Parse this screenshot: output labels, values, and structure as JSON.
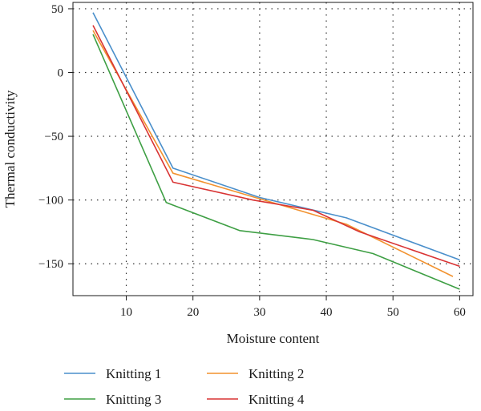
{
  "chart_data": {
    "type": "line",
    "xlabel": "Moisture content",
    "ylabel": "Thermal conductivity",
    "xlim": [
      2,
      62
    ],
    "ylim": [
      -175,
      55
    ],
    "xticks": [
      10,
      20,
      30,
      40,
      50,
      60
    ],
    "yticks": [
      50,
      0,
      -50,
      -100,
      -150
    ],
    "grid": "dotted",
    "legend_position": "bottom",
    "series": [
      {
        "name": "Knitting 1",
        "color": "#4a8fcb",
        "x": [
          5,
          17,
          30,
          43,
          60
        ],
        "y": [
          47,
          -75,
          -98,
          -114,
          -147
        ]
      },
      {
        "name": "Knitting 2",
        "color": "#f2922f",
        "x": [
          5,
          17,
          30,
          43,
          59
        ],
        "y": [
          33,
          -79,
          -99,
          -119,
          -160
        ]
      },
      {
        "name": "Knitting 3",
        "color": "#3e9f44",
        "x": [
          5,
          16,
          27,
          38,
          47,
          60
        ],
        "y": [
          30,
          -102,
          -124,
          -131,
          -142,
          -170
        ]
      },
      {
        "name": "Knitting 4",
        "color": "#d93434",
        "x": [
          5,
          17,
          29,
          38,
          45,
          60
        ],
        "y": [
          37,
          -86,
          -100,
          -108,
          -125,
          -152
        ]
      }
    ]
  }
}
